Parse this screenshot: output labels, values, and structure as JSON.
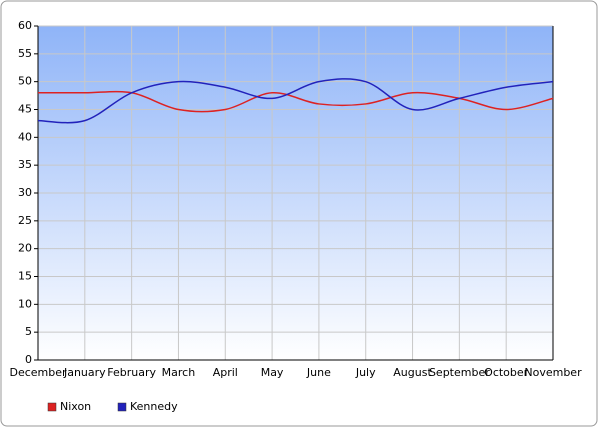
{
  "chart_data": {
    "type": "line",
    "categories": [
      "December",
      "January",
      "February",
      "March",
      "April",
      "May",
      "June",
      "July",
      "August",
      "September",
      "October",
      "November"
    ],
    "series": [
      {
        "name": "Nixon",
        "color": "#dd2222",
        "values": [
          48,
          48,
          48,
          45,
          45,
          48,
          46,
          46,
          48,
          47,
          45,
          47
        ]
      },
      {
        "name": "Kennedy",
        "color": "#2222bb",
        "values": [
          43,
          43,
          48,
          50,
          49,
          47,
          50,
          50,
          45,
          47,
          49,
          50
        ]
      }
    ],
    "ylim": [
      0,
      60
    ],
    "yticks": [
      0,
      5,
      10,
      15,
      20,
      25,
      30,
      35,
      40,
      45,
      50,
      55,
      60
    ],
    "grid": true,
    "legend": "bottom-left"
  }
}
